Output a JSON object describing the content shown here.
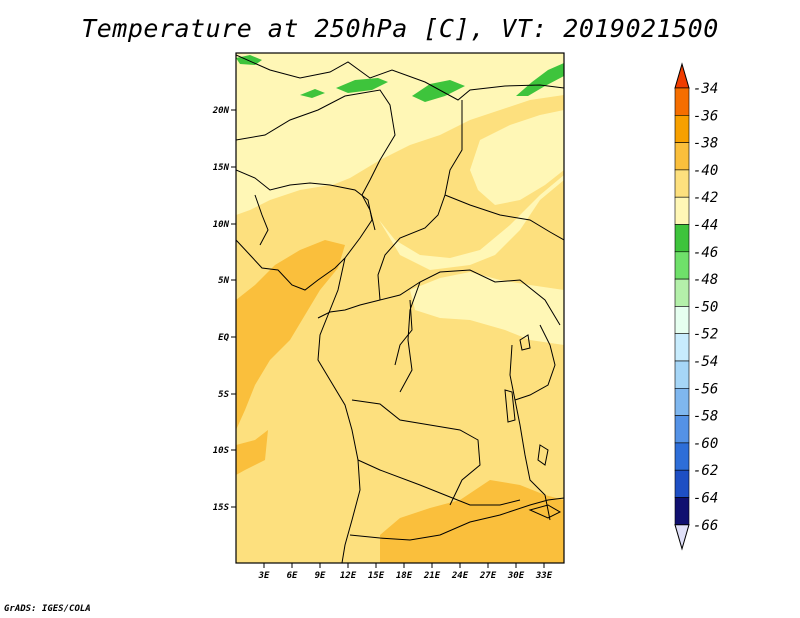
{
  "title": "Temperature at 250hPa [C], VT: 2019021500",
  "credit": "GrADS: IGES/COLA",
  "map": {
    "lat_labels": [
      "20N",
      "15N",
      "10N",
      "5N",
      "EQ",
      "5S",
      "10S",
      "15S"
    ],
    "lon_labels": [
      "3E",
      "6E",
      "9E",
      "12E",
      "15E",
      "18E",
      "21E",
      "24E",
      "27E",
      "30E",
      "33E"
    ]
  },
  "colorbar": {
    "labels": [
      "-34",
      "-36",
      "-38",
      "-40",
      "-42",
      "-44",
      "-46",
      "-48",
      "-50",
      "-52",
      "-54",
      "-56",
      "-58",
      "-60",
      "-62",
      "-64",
      "-66"
    ],
    "colors": [
      "#f03c00",
      "#f56e00",
      "#f7a000",
      "#fabf3c",
      "#fde07e",
      "#fff7b6",
      "#3ec43c",
      "#6fe06a",
      "#b4f0aa",
      "#e6fff0",
      "#c8ecfd",
      "#a6d6f7",
      "#7fb7ef",
      "#5492e6",
      "#2e6ed8",
      "#1e4fc4",
      "#101070",
      "#e0e0f8"
    ]
  }
}
